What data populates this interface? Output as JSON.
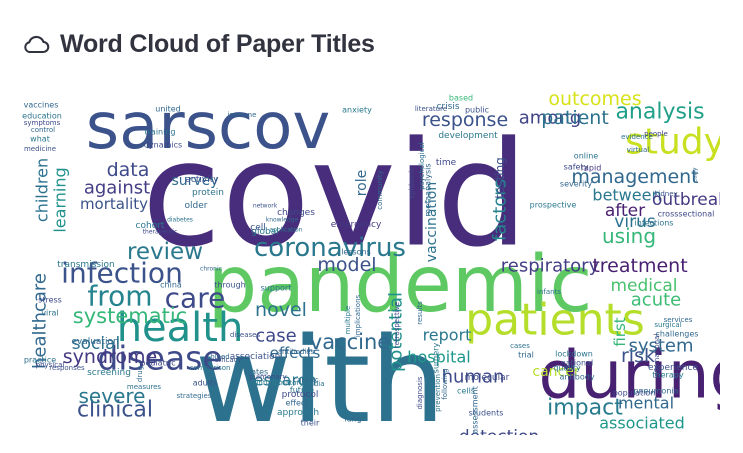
{
  "header": {
    "icon": "cloud-icon",
    "title": "Word Cloud of Paper Titles"
  },
  "cloud": {
    "words": [
      {
        "text": "covid",
        "color": "#472d7b",
        "rot": 0
      },
      {
        "text": "with",
        "color": "#2c728e",
        "rot": 0
      },
      {
        "text": "pandemic",
        "color": "#5ec962",
        "rot": 0
      },
      {
        "text": "sarscov",
        "color": "#3b528b",
        "rot": 0
      },
      {
        "text": "during",
        "color": "#482173",
        "rot": 0
      },
      {
        "text": "patients",
        "color": "#b5de2b",
        "rot": 0
      },
      {
        "text": "health",
        "color": "#21918c",
        "rot": 0
      },
      {
        "text": "study",
        "color": "#c8e020",
        "rot": 0
      },
      {
        "text": "disease",
        "color": "#3e4989",
        "rot": 0
      },
      {
        "text": "coronavirus",
        "color": "#2a788e",
        "rot": 0
      },
      {
        "text": "infection",
        "color": "#3b528b",
        "rot": 0
      },
      {
        "text": "from",
        "color": "#25848e",
        "rot": 0
      },
      {
        "text": "care",
        "color": "#3e4989",
        "rot": 0
      },
      {
        "text": "analysis",
        "color": "#1fa088",
        "rot": 0
      },
      {
        "text": "outcomes",
        "color": "#d8e219",
        "rot": 0
      },
      {
        "text": "impact",
        "color": "#287c8e",
        "rot": 0
      },
      {
        "text": "clinical",
        "color": "#3b528b",
        "rot": 0
      },
      {
        "text": "review",
        "color": "#2a788e",
        "rot": 0
      },
      {
        "text": "respiratory",
        "color": "#433e85",
        "rot": 0
      },
      {
        "text": "treatment",
        "color": "#481f70",
        "rot": 0
      },
      {
        "text": "among",
        "color": "#414487",
        "rot": 0
      },
      {
        "text": "response",
        "color": "#3b528b",
        "rot": 0
      },
      {
        "text": "patient",
        "color": "#2c728e",
        "rot": 0
      },
      {
        "text": "management",
        "color": "#31688e",
        "rot": 0
      },
      {
        "text": "systematic",
        "color": "#35b779",
        "rot": 0
      },
      {
        "text": "syndrome",
        "color": "#443983",
        "rot": 0
      },
      {
        "text": "severe",
        "color": "#2a788e",
        "rot": 0
      },
      {
        "text": "associated",
        "color": "#1f988b",
        "rot": 0
      },
      {
        "text": "medical",
        "color": "#4ac16d",
        "rot": 0
      },
      {
        "text": "acute",
        "color": "#3dbc74",
        "rot": 0
      },
      {
        "text": "mental",
        "color": "#31688e",
        "rot": 0
      },
      {
        "text": "cancer",
        "color": "#b5de2b",
        "rot": 0
      },
      {
        "text": "human",
        "color": "#3e4989",
        "rot": 0
      },
      {
        "text": "social",
        "color": "#2c728e",
        "rot": 0
      },
      {
        "text": "vaccine",
        "color": "#31688e",
        "rot": 0
      },
      {
        "text": "model",
        "color": "#3b528b",
        "rot": 0
      },
      {
        "text": "novel",
        "color": "#2c728e",
        "rot": 0
      },
      {
        "text": "data",
        "color": "#3e4989",
        "rot": 0
      },
      {
        "text": "against",
        "color": "#433e85",
        "rot": 0
      },
      {
        "text": "mortality",
        "color": "#3b528b",
        "rot": 0
      },
      {
        "text": "survey",
        "color": "#31688e",
        "rot": 0
      },
      {
        "text": "using",
        "color": "#35b779",
        "rot": 0
      },
      {
        "text": "after",
        "color": "#481f70",
        "rot": 0
      },
      {
        "text": "between",
        "color": "#2a788e",
        "rot": 0
      },
      {
        "text": "outbreak",
        "color": "#443983",
        "rot": 0
      },
      {
        "text": "virus",
        "color": "#2c728e",
        "rot": 0
      },
      {
        "text": "risk",
        "color": "#3b528b",
        "rot": 0
      },
      {
        "text": "system",
        "color": "#31688e",
        "rot": 0
      },
      {
        "text": "report",
        "color": "#2a788e",
        "rot": 0
      },
      {
        "text": "hospital",
        "color": "#1f988b",
        "rot": 0
      },
      {
        "text": "case",
        "color": "#3e4989",
        "rot": 0
      },
      {
        "text": "effects",
        "color": "#31688e",
        "rot": 0
      },
      {
        "text": "research",
        "color": "#2a788e",
        "rot": 0
      },
      {
        "text": "detection",
        "color": "#3e4989",
        "rot": 0
      },
      {
        "text": "healthcare",
        "color": "#31688e",
        "rot": 270
      },
      {
        "text": "children",
        "color": "#2c728e",
        "rot": 270
      },
      {
        "text": "learning",
        "color": "#21918c",
        "rot": 270
      },
      {
        "text": "factors",
        "color": "#25848e",
        "rot": 270
      },
      {
        "text": "potential",
        "color": "#21918c",
        "rot": 270
      },
      {
        "text": "vaccination",
        "color": "#2c728e",
        "rot": 270
      },
      {
        "text": "role",
        "color": "#31688e",
        "rot": 270
      },
      {
        "text": "testing",
        "color": "#3b528b",
        "rot": 270
      },
      {
        "text": "first",
        "color": "#35b779",
        "rot": 270
      },
      {
        "text": "online",
        "color": "#2c728e",
        "rot": 0
      },
      {
        "text": "safety",
        "color": "#3e4989",
        "rot": 0
      },
      {
        "text": "severity",
        "color": "#31688e",
        "rot": 0
      },
      {
        "text": "rapid",
        "color": "#443983",
        "rot": 0
      },
      {
        "text": "development",
        "color": "#2a788e",
        "rot": 0
      },
      {
        "text": "public",
        "color": "#3b528b",
        "rot": 0
      },
      {
        "text": "crisis",
        "color": "#31688e",
        "rot": 0
      },
      {
        "text": "based",
        "color": "#35b779",
        "rot": 0
      },
      {
        "text": "time",
        "color": "#3e4989",
        "rot": 0
      },
      {
        "text": "protein",
        "color": "#2c728e",
        "rot": 0
      },
      {
        "text": "activity",
        "color": "#3b528b",
        "rot": 0
      },
      {
        "text": "older",
        "color": "#31688e",
        "rot": 0
      },
      {
        "text": "global",
        "color": "#2a788e",
        "rot": 0
      },
      {
        "text": "changes",
        "color": "#3e4989",
        "rot": 0
      },
      {
        "text": "lessons",
        "color": "#31688e",
        "rot": 0
      },
      {
        "text": "emergency",
        "color": "#443983",
        "rot": 0
      },
      {
        "text": "transmission",
        "color": "#2a788e",
        "rot": 0
      },
      {
        "text": "stress",
        "color": "#3e4989",
        "rot": 0
      },
      {
        "text": "viral",
        "color": "#2c728e",
        "rot": 0
      },
      {
        "text": "china",
        "color": "#31688e",
        "rot": 0
      },
      {
        "text": "through",
        "color": "#3b528b",
        "rot": 0
      },
      {
        "text": "support",
        "color": "#2c728e",
        "rot": 0
      },
      {
        "text": "evaluation",
        "color": "#31688e",
        "rot": 0
      },
      {
        "text": "screening",
        "color": "#2a788e",
        "rot": 0
      },
      {
        "text": "pediatric",
        "color": "#3e4989",
        "rot": 0
      },
      {
        "text": "states",
        "color": "#31688e",
        "rot": 0
      },
      {
        "text": "practice",
        "color": "#2c728e",
        "rot": 0
      },
      {
        "text": "association",
        "color": "#3b528b",
        "rot": 0
      },
      {
        "text": "approach",
        "color": "#2a788e",
        "rot": 0
      },
      {
        "text": "protocol",
        "color": "#3e4989",
        "rot": 0
      },
      {
        "text": "effect",
        "color": "#31688e",
        "rot": 0
      },
      {
        "text": "future",
        "color": "#2c728e",
        "rot": 0
      },
      {
        "text": "their",
        "color": "#3b528b",
        "rot": 0
      },
      {
        "text": "lung",
        "color": "#31688e",
        "rot": 0
      },
      {
        "text": "molecular",
        "color": "#3e4989",
        "rot": 0
      },
      {
        "text": "quality",
        "color": "#2a788e",
        "rot": 0
      },
      {
        "text": "antibody",
        "color": "#31688e",
        "rot": 0
      },
      {
        "text": "national",
        "color": "#3b528b",
        "rot": 0
      },
      {
        "text": "lockdown",
        "color": "#2c728e",
        "rot": 0
      },
      {
        "text": "population",
        "color": "#3e4989",
        "rot": 0
      },
      {
        "text": "pneumonia",
        "color": "#31688e",
        "rot": 0
      },
      {
        "text": "therapy",
        "color": "#2a788e",
        "rot": 0
      },
      {
        "text": "experience",
        "color": "#3b528b",
        "rot": 0
      },
      {
        "text": "challenges",
        "color": "#31688e",
        "rot": 0
      },
      {
        "text": "infections",
        "color": "#2c728e",
        "rot": 0
      },
      {
        "text": "crosssectional",
        "color": "#3e4989",
        "rot": 0
      },
      {
        "text": "trial",
        "color": "#31688e",
        "rot": 0
      },
      {
        "text": "cells",
        "color": "#2a788e",
        "rot": 0
      },
      {
        "text": "students",
        "color": "#3b528b",
        "rot": 0
      },
      {
        "text": "assessment",
        "color": "#31688e",
        "rot": 270
      },
      {
        "text": "prevention",
        "color": "#2c728e",
        "rot": 270
      },
      {
        "text": "diagnosis",
        "color": "#3e4989",
        "rot": 270
      },
      {
        "text": "following",
        "color": "#31688e",
        "rot": 270
      },
      {
        "text": "surgery",
        "color": "#2a788e",
        "rot": 270
      },
      {
        "text": "adults",
        "color": "#3b528b",
        "rot": 0
      },
      {
        "text": "vaccines",
        "color": "#31688e",
        "rot": 0
      },
      {
        "text": "education",
        "color": "#2c728e",
        "rot": 0
      },
      {
        "text": "symptoms",
        "color": "#3e4989",
        "rot": 0
      },
      {
        "text": "control",
        "color": "#31688e",
        "rot": 0
      },
      {
        "text": "what",
        "color": "#2a788e",
        "rot": 0
      },
      {
        "text": "medicine",
        "color": "#3b528b",
        "rot": 0
      },
      {
        "text": "united",
        "color": "#31688e",
        "rot": 0
      },
      {
        "text": "training",
        "color": "#2c728e",
        "rot": 0
      },
      {
        "text": "dynamics",
        "color": "#3e4989",
        "rot": 0
      },
      {
        "text": "immune",
        "color": "#31688e",
        "rot": 0
      },
      {
        "text": "anxiety",
        "color": "#2a788e",
        "rot": 0
      },
      {
        "text": "literature",
        "color": "#3b528b",
        "rot": 0
      },
      {
        "text": "virtual",
        "color": "#31688e",
        "rot": 0
      },
      {
        "text": "evidence",
        "color": "#2c728e",
        "rot": 0
      },
      {
        "text": "people",
        "color": "#3e4989",
        "rot": 0
      },
      {
        "text": "early",
        "color": "#31688e",
        "rot": 270
      },
      {
        "text": "cohort",
        "color": "#2a788e",
        "rot": 0
      },
      {
        "text": "cell",
        "color": "#3b528b",
        "rot": 0
      },
      {
        "text": "metaanalysis",
        "color": "#31688e",
        "rot": 270
      },
      {
        "text": "psychological",
        "color": "#2c728e",
        "rot": 270
      },
      {
        "text": "epidemic",
        "color": "#3e4989",
        "rot": 270
      },
      {
        "text": "community",
        "color": "#31688e",
        "rot": 270
      },
      {
        "text": "prospective",
        "color": "#2a788e",
        "rot": 0
      },
      {
        "text": "kidney",
        "color": "#3b528b",
        "rot": 0
      },
      {
        "text": "services",
        "color": "#31688e",
        "rot": 0
      },
      {
        "text": "cases",
        "color": "#2c728e",
        "rot": 0
      },
      {
        "text": "retrospective",
        "color": "#3e4989",
        "rot": 270
      },
      {
        "text": "implications",
        "color": "#31688e",
        "rot": 270
      },
      {
        "text": "multiple",
        "color": "#2a788e",
        "rot": 270
      },
      {
        "text": "diseases",
        "color": "#3b528b",
        "rot": 0
      },
      {
        "text": "cardiac",
        "color": "#31688e",
        "rot": 0
      },
      {
        "text": "india",
        "color": "#2c728e",
        "rot": 0
      },
      {
        "text": "pulmonary",
        "color": "#3e4989",
        "rot": 0
      },
      {
        "text": "antibodies",
        "color": "#31688e",
        "rot": 0
      },
      {
        "text": "inflammatory",
        "color": "#2a788e",
        "rot": 0
      },
      {
        "text": "responses",
        "color": "#3b528b",
        "rot": 0
      },
      {
        "text": "drug",
        "color": "#31688e",
        "rot": 270
      },
      {
        "text": "measures",
        "color": "#2c728e",
        "rot": 0
      },
      {
        "text": "physical",
        "color": "#3e4989",
        "rot": 0
      },
      {
        "text": "strategies",
        "color": "#31688e",
        "rot": 0
      },
      {
        "text": "comparison",
        "color": "#2a788e",
        "rot": 0
      },
      {
        "text": "efficacy",
        "color": "#3b528b",
        "rot": 0
      },
      {
        "text": "blood",
        "color": "#31688e",
        "rot": 0
      },
      {
        "text": "infants",
        "color": "#2c728e",
        "rot": 0
      },
      {
        "text": "international",
        "color": "#3e4989",
        "rot": 270
      },
      {
        "text": "results",
        "color": "#31688e",
        "rot": 270
      },
      {
        "text": "surgical",
        "color": "#2a788e",
        "rot": 0
      },
      {
        "text": "network",
        "color": "#3b528b",
        "rot": 0
      },
      {
        "text": "knowledge",
        "color": "#31688e",
        "rot": 0
      },
      {
        "text": "diabetes",
        "color": "#2c728e",
        "rot": 0
      },
      {
        "text": "therapeutic",
        "color": "#3e4989",
        "rot": 0
      },
      {
        "text": "chronic",
        "color": "#31688e",
        "rot": 0
      },
      {
        "text": "application",
        "color": "#2a788e",
        "rot": 0
      },
      {
        "text": "characteristics",
        "color": "#3b528b",
        "rot": 0
      }
    ]
  }
}
